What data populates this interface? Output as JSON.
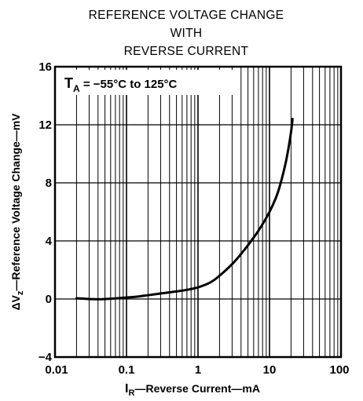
{
  "chart_data": {
    "type": "line",
    "title_lines": [
      "REFERENCE VOLTAGE CHANGE",
      "WITH",
      "REVERSE CURRENT"
    ],
    "xlabel": {
      "main": "I",
      "sub": "R",
      "rest": "—Reverse Current—mA"
    },
    "ylabel": {
      "pre": "ΔV",
      "sub": "z",
      "rest": "—Reference Voltage Change—mV"
    },
    "annotation": {
      "main": "T",
      "sub": "A",
      "rest": " =  −55°C to 125°C"
    },
    "x_scale": "log",
    "xlim": [
      0.01,
      100
    ],
    "ylim": [
      -4,
      16
    ],
    "x_ticks": [
      0.01,
      0.1,
      1,
      10,
      100
    ],
    "x_tick_labels": [
      "0.01",
      "0.1",
      "1",
      "10",
      "100"
    ],
    "y_ticks": [
      -4,
      0,
      4,
      8,
      12,
      16
    ],
    "y_tick_labels": [
      "−4",
      "0",
      "4",
      "8",
      "12",
      "16"
    ],
    "grid": true,
    "series": [
      {
        "x": [
          0.02,
          0.03,
          0.04,
          0.06,
          0.1,
          0.15,
          0.2,
          0.3,
          0.5,
          0.7,
          1,
          1.5,
          2,
          3,
          4,
          5,
          7,
          10,
          13,
          16,
          18,
          20,
          21
        ],
        "y": [
          0.05,
          0.0,
          -0.02,
          0.02,
          0.1,
          0.18,
          0.26,
          0.38,
          0.52,
          0.63,
          0.8,
          1.15,
          1.6,
          2.4,
          3.1,
          3.7,
          4.7,
          6.0,
          7.3,
          8.9,
          10.1,
          11.5,
          12.4
        ]
      }
    ]
  }
}
